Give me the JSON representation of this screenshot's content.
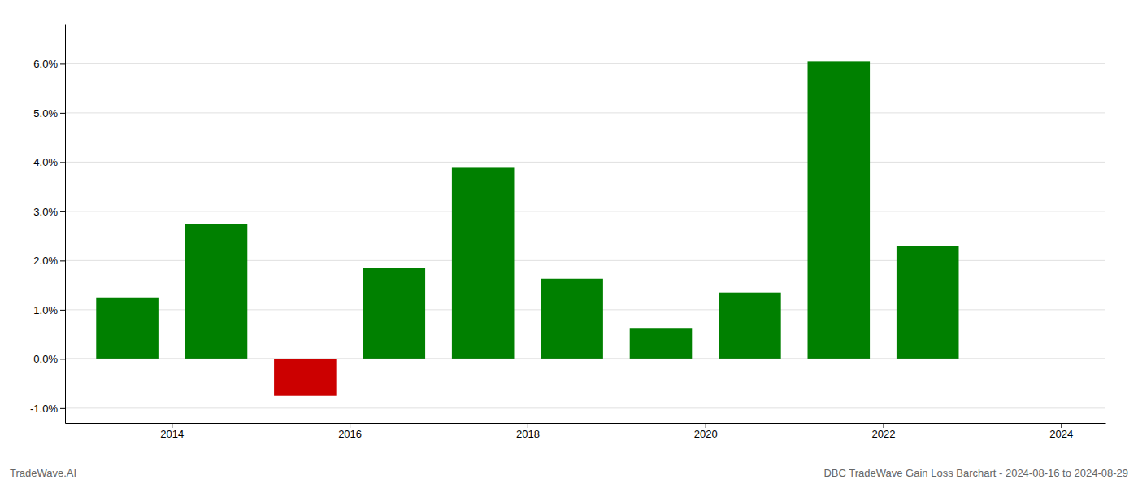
{
  "chart_data": {
    "type": "bar",
    "title": "DBC TradeWave Gain Loss Barchart - 2024-08-16 to 2024-08-29",
    "annotations": [
      "TradeWave.AI"
    ],
    "x": [
      2013.5,
      2014.5,
      2015.5,
      2016.5,
      2017.5,
      2018.5,
      2019.5,
      2020.5,
      2021.5,
      2022.5
    ],
    "values": [
      0.0125,
      0.0275,
      -0.0075,
      0.0185,
      0.039,
      0.0163,
      0.0063,
      0.0135,
      0.0605,
      0.023
    ],
    "colors": [
      "#008000",
      "#008000",
      "#cc0000",
      "#008000",
      "#008000",
      "#008000",
      "#008000",
      "#008000",
      "#008000",
      "#008000"
    ],
    "xlim": [
      2012.8,
      2024.5
    ],
    "xticks": [
      2014,
      2016,
      2018,
      2020,
      2022,
      2024
    ],
    "ylim": [
      -0.013,
      0.068
    ],
    "yticks": [
      {
        "value": -0.01,
        "label": "-1.0%"
      },
      {
        "value": 0.0,
        "label": "0.0%"
      },
      {
        "value": 0.01,
        "label": "1.0%"
      },
      {
        "value": 0.02,
        "label": "2.0%"
      },
      {
        "value": 0.03,
        "label": "3.0%"
      },
      {
        "value": 0.04,
        "label": "4.0%"
      },
      {
        "value": 0.05,
        "label": "5.0%"
      },
      {
        "value": 0.06,
        "label": "6.0%"
      }
    ],
    "grid": true
  }
}
